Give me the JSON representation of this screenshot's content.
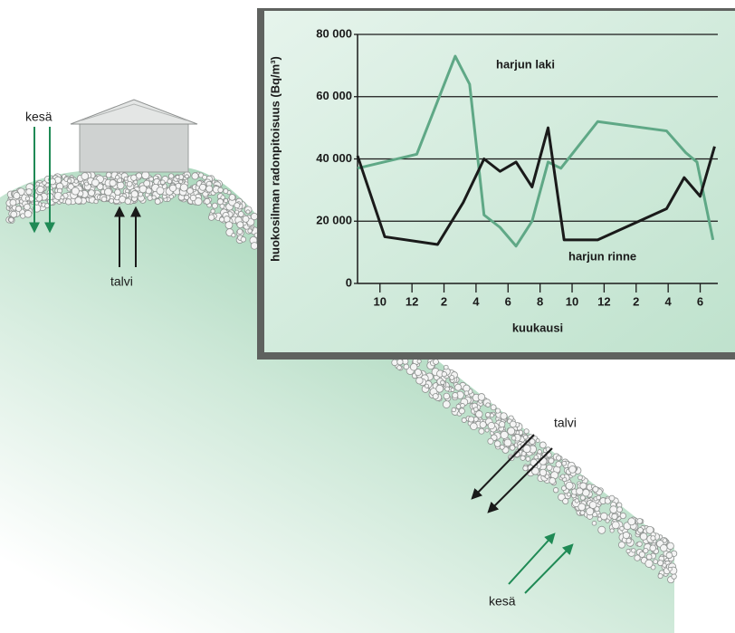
{
  "labels": {
    "top_summer": "kesä",
    "top_winter": "talvi",
    "slope_winter": "talvi",
    "slope_summer": "kesä"
  },
  "chart_data": {
    "type": "line",
    "y_label": "huokosilman radonpitoisuus (Bq/m³)",
    "x_label": "kuukausi",
    "xlim": [
      8.6,
      31.1
    ],
    "xticks": [
      {
        "value": 10,
        "label": "10"
      },
      {
        "value": 12,
        "label": "12"
      },
      {
        "value": 14,
        "label": "2"
      },
      {
        "value": 16,
        "label": "4"
      },
      {
        "value": 18,
        "label": "6"
      },
      {
        "value": 20,
        "label": "8"
      },
      {
        "value": 22,
        "label": "10"
      },
      {
        "value": 24,
        "label": "12"
      },
      {
        "value": 26,
        "label": "2"
      },
      {
        "value": 28,
        "label": "4"
      },
      {
        "value": 30,
        "label": "6"
      }
    ],
    "ylim": [
      0,
      80000
    ],
    "yticks": [
      0,
      {
        "value": 20000,
        "label": "20 000"
      },
      {
        "value": 40000,
        "label": "40 000"
      },
      {
        "value": 60000,
        "label": "60 000"
      },
      {
        "value": 80000,
        "label": "80 000"
      }
    ],
    "grid": true,
    "series": [
      {
        "name": "harjun laki",
        "color": "#5fa886",
        "x": [
          8.6,
          12.3,
          14.7,
          15.6,
          16.5,
          17.5,
          18.5,
          19.5,
          20.5,
          21.3,
          23.6,
          27.9,
          29.1,
          29.8,
          30.8
        ],
        "values": [
          37000,
          41500,
          73000,
          64000,
          22000,
          18000,
          12000,
          20000,
          39000,
          37000,
          52000,
          49000,
          42000,
          39000,
          14000
        ]
      },
      {
        "name": "harjun rinne",
        "color": "#1a1a1a",
        "x": [
          8.6,
          10.3,
          13.6,
          15.2,
          16.5,
          17.5,
          18.5,
          19.5,
          20.5,
          21.5,
          23.6,
          27.9,
          29.0,
          30.0,
          30.9
        ],
        "values": [
          41000,
          15000,
          12500,
          26000,
          40000,
          36000,
          39000,
          31000,
          50000,
          14000,
          14000,
          24000,
          34000,
          28000,
          44000
        ]
      }
    ]
  }
}
